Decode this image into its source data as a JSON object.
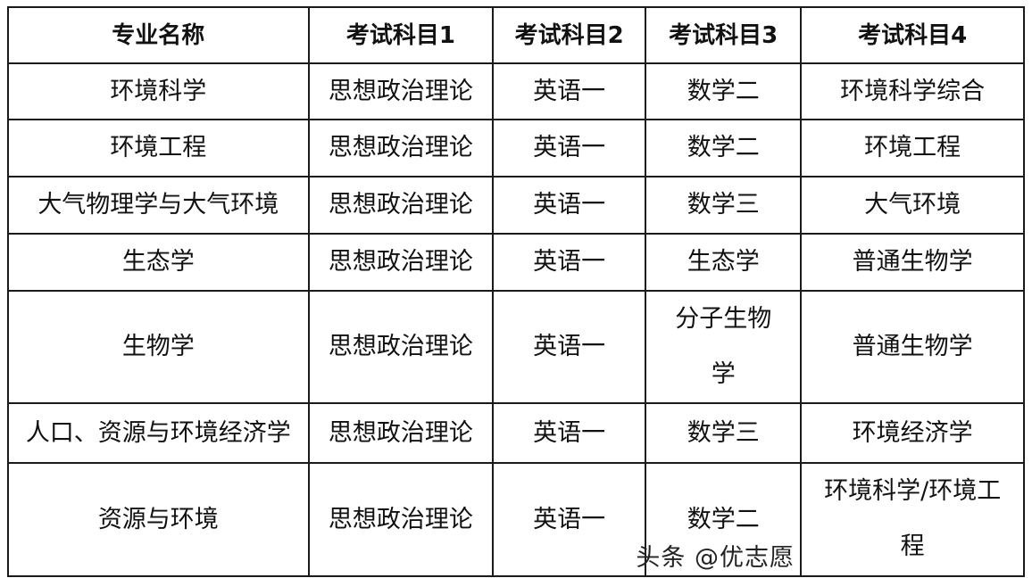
{
  "table": {
    "headers": [
      "专业名称",
      "考试科目1",
      "考试科目2",
      "考试科目3",
      "考试科目4"
    ],
    "rows": [
      [
        "环境科学",
        "思想政治理论",
        "英语一",
        "数学二",
        "环境科学综合"
      ],
      [
        "环境工程",
        "思想政治理论",
        "英语一",
        "数学二",
        "环境工程"
      ],
      [
        "大气物理学与大气环境",
        "思想政治理论",
        "英语一",
        "数学三",
        "大气环境"
      ],
      [
        "生态学",
        "思想政治理论",
        "英语一",
        "生态学",
        "普通生物学"
      ],
      [
        "生物学",
        "思想政治理论",
        "英语一",
        "分子生物学",
        "普通生物学"
      ],
      [
        "人口、资源与环境经济学",
        "思想政治理论",
        "英语一",
        "数学三",
        "环境经济学"
      ],
      [
        "资源与环境",
        "思想政治理论",
        "英语一",
        "数学二",
        "环境科学/环境工程"
      ]
    ]
  },
  "watermark": "头条 @优志愿"
}
